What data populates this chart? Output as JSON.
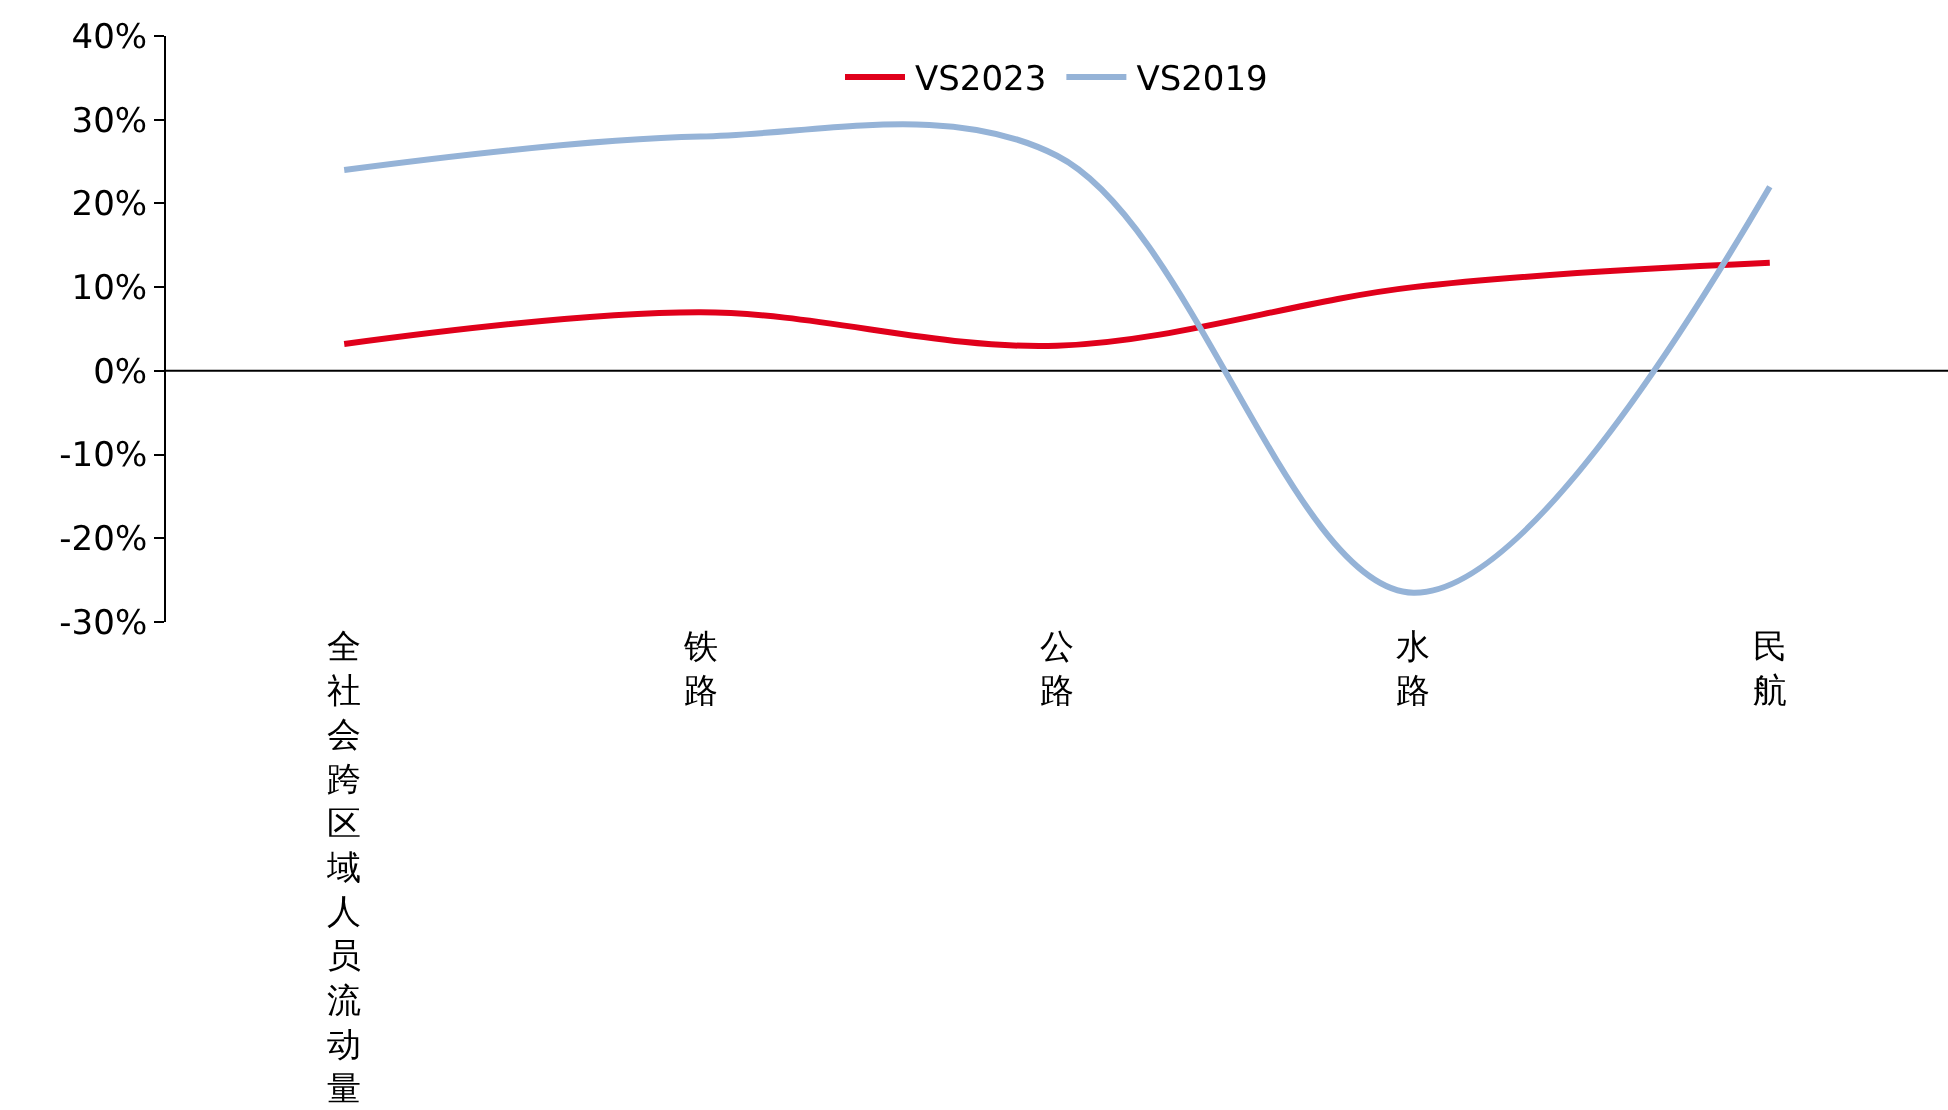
{
  "chart_data": {
    "type": "line",
    "categories": [
      "全社会跨区域人员流动量",
      "铁路",
      "公路",
      "水路",
      "民航"
    ],
    "series": [
      {
        "name": "VS2023",
        "color": "#e0001b",
        "values": [
          3.2,
          7,
          3,
          10,
          12.9
        ]
      },
      {
        "name": "VS2019",
        "color": "#95b3d7",
        "values": [
          24,
          28,
          25.7,
          -26.5,
          22
        ]
      }
    ],
    "ylim": [
      -30,
      40
    ],
    "yticks": [
      {
        "value": -30,
        "label": "-30%"
      },
      {
        "value": -20,
        "label": "-20%"
      },
      {
        "value": -10,
        "label": "-10%"
      },
      {
        "value": 0,
        "label": "0%"
      },
      {
        "value": 10,
        "label": "10%"
      },
      {
        "value": 20,
        "label": "20%"
      },
      {
        "value": 30,
        "label": "30%"
      },
      {
        "value": 40,
        "label": "40%"
      }
    ],
    "ref_lines": [
      {
        "axis": "y",
        "value": 0,
        "color": "#000000"
      }
    ],
    "grid": false,
    "legend": "top",
    "marker": "none",
    "line_style": "solid"
  }
}
